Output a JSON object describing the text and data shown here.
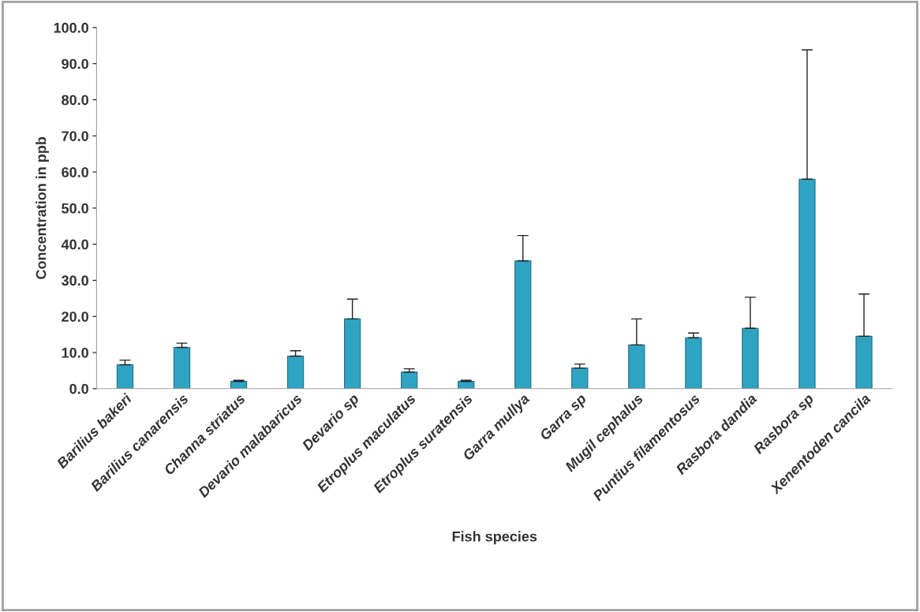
{
  "chart_data": {
    "type": "bar",
    "categories": [
      "Barilius bakeri",
      "Barilius canarensis",
      "Channa striatus",
      "Devario malabaricus",
      "Devario sp",
      "Etroplus maculatus",
      "Etroplus suratensis",
      "Garra mullya",
      "Garra sp",
      "Mugil cephalus",
      "Puntius filamentosus",
      "Rasbora dandia",
      "Rasbora sp",
      "Xenentoden cancila"
    ],
    "values": [
      6.6,
      11.4,
      2.0,
      9.0,
      19.3,
      4.6,
      2.0,
      35.4,
      5.7,
      12.1,
      14.1,
      16.7,
      58.0,
      14.5
    ],
    "errors": [
      [
        6.6,
        7.9
      ],
      [
        11.4,
        12.6
      ],
      [
        2.0,
        2.3
      ],
      [
        9.0,
        10.5
      ],
      [
        19.3,
        24.8
      ],
      [
        4.6,
        5.5
      ],
      [
        2.0,
        2.3
      ],
      [
        35.4,
        42.4
      ],
      [
        5.7,
        6.8
      ],
      [
        12.1,
        19.3
      ],
      [
        14.1,
        15.4
      ],
      [
        16.7,
        25.3
      ],
      [
        58.0,
        93.8
      ],
      [
        14.5,
        26.2
      ]
    ],
    "color": "#2fa3c2",
    "xlabel": "Fish species",
    "ylabel": "Concentration in ppb",
    "ylim": [
      0,
      100
    ],
    "yticks": [
      {
        "value": 0,
        "label": "0.0"
      },
      {
        "value": 10,
        "label": "10.0"
      },
      {
        "value": 20,
        "label": "20.0"
      },
      {
        "value": 30,
        "label": "30.0"
      },
      {
        "value": 40,
        "label": "40.0"
      },
      {
        "value": 50,
        "label": "50.0"
      },
      {
        "value": 60,
        "label": "60.0"
      },
      {
        "value": 70,
        "label": "70.0"
      },
      {
        "value": 80,
        "label": "80.0"
      },
      {
        "value": 90,
        "label": "90.0"
      },
      {
        "value": 100,
        "label": "100.0"
      }
    ],
    "grid": false
  }
}
